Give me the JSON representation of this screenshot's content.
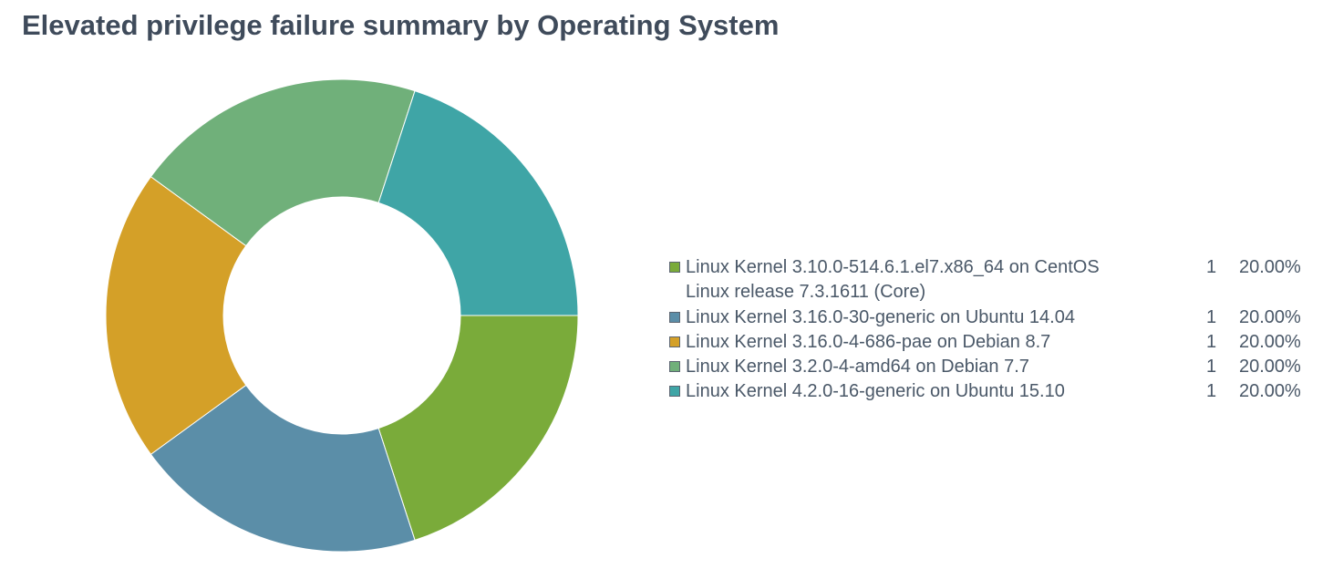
{
  "chart_data": {
    "type": "pie",
    "title": "Elevated privilege failure summary by Operating System",
    "donut": true,
    "legend_position": "right",
    "slices": [
      {
        "label": "Linux Kernel 3.10.0-514.6.1.el7.x86_64 on CentOS",
        "label_line2": "Linux release 7.3.1611 (Core)",
        "value": 1,
        "percent": "20.00%",
        "color": "#7aab3a"
      },
      {
        "label": "Linux Kernel 3.16.0-30-generic on Ubuntu 14.04",
        "value": 1,
        "percent": "20.00%",
        "color": "#5b8ea8"
      },
      {
        "label": "Linux Kernel 3.16.0-4-686-pae on Debian 8.7",
        "value": 1,
        "percent": "20.00%",
        "color": "#d4a028"
      },
      {
        "label": "Linux Kernel 3.2.0-4-amd64 on Debian 7.7",
        "value": 1,
        "percent": "20.00%",
        "color": "#70b07a"
      },
      {
        "label": "Linux Kernel 4.2.0-16-generic on Ubuntu 15.10",
        "value": 1,
        "percent": "20.00%",
        "color": "#3fa5a6"
      }
    ]
  }
}
